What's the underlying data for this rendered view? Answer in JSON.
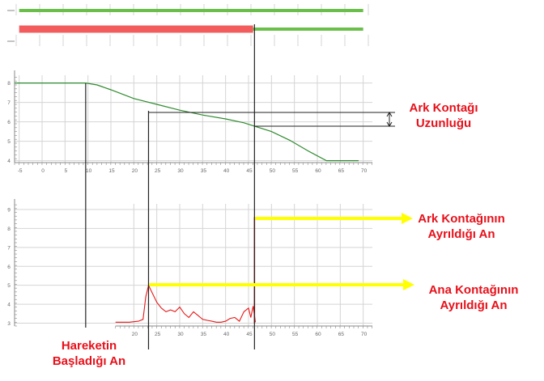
{
  "colors": {
    "grid": "#d4d4d4",
    "axis": "#888888",
    "status_on": "#6abf4b",
    "status_open": "#f25c5c",
    "travel_curve": "#2e8b2e",
    "current_trace": "#e81818",
    "marker": "#222222",
    "highlight_arrow": "#ffff00",
    "annotation_text": "#e8101a"
  },
  "annotations": {
    "arc_length_l1": "Ark Kontağı",
    "arc_length_l2": "Uzunluğu",
    "arc_sep_l1": "Ark Kontağının",
    "arc_sep_l2": "Ayrıldığı An",
    "main_sep_l1": "Ana Kontağının",
    "main_sep_l2": "Ayrıldığı An",
    "motion_start_l1": "Hareketin",
    "motion_start_l2": "Başladığı An"
  },
  "chart_data": [
    {
      "type": "line",
      "panel": "status",
      "series": [
        {
          "values": [
            [
              -5,
              70
            ]
          ],
          "state": "closed"
        },
        {
          "values": [
            [
              -5,
              46
            ]
          ],
          "state": "open"
        },
        {
          "values": [
            [
              46,
              70
            ]
          ],
          "state": "closed"
        }
      ],
      "xlim": [
        -6,
        72
      ]
    },
    {
      "type": "line",
      "panel": "travel",
      "x_ticks": [
        "-5",
        "0",
        "5",
        "10",
        "15",
        "20",
        "25",
        "30",
        "35",
        "40",
        "45",
        "50",
        "55",
        "60",
        "65",
        "70"
      ],
      "y_ticks": [
        "4",
        "5",
        "6",
        "7",
        "8"
      ],
      "xlim": [
        -6,
        72
      ],
      "ylim": [
        3.9,
        8.4
      ],
      "series": [
        {
          "x": [
            -6,
            9.5,
            12,
            15,
            20,
            25,
            30,
            35,
            40,
            44,
            46,
            50,
            54,
            58,
            62,
            66,
            69
          ],
          "y": [
            8,
            8,
            7.9,
            7.65,
            7.2,
            6.9,
            6.6,
            6.35,
            6.15,
            5.95,
            5.8,
            5.5,
            5.05,
            4.5,
            4,
            4,
            4
          ]
        }
      ]
    },
    {
      "type": "line",
      "panel": "current",
      "x_ticks": [
        "20",
        "25",
        "30",
        "35",
        "40",
        "45",
        "50",
        "55",
        "60",
        "65",
        "70"
      ],
      "y_ticks": [
        "3",
        "4",
        "5",
        "6",
        "7",
        "8",
        "9"
      ],
      "xlim": [
        -6,
        72
      ],
      "ylim": [
        2.85,
        9.3
      ],
      "series": [
        {
          "x": [
            16,
            19,
            21,
            22,
            22.6,
            23.2,
            24,
            25,
            26,
            27,
            28,
            29,
            30,
            31,
            32,
            33,
            34,
            35,
            36,
            37,
            38,
            39,
            40,
            41,
            42,
            43,
            44,
            45,
            45.5,
            46,
            46.5
          ],
          "y": [
            3.05,
            3.05,
            3.1,
            3.2,
            4.4,
            5.0,
            4.6,
            4.1,
            3.8,
            3.6,
            3.7,
            3.6,
            3.85,
            3.5,
            3.3,
            3.6,
            3.4,
            3.2,
            3.15,
            3.1,
            3.05,
            3.05,
            3.1,
            3.25,
            3.3,
            3.1,
            3.6,
            3.8,
            3.3,
            3.9,
            3.05
          ]
        }
      ]
    }
  ]
}
